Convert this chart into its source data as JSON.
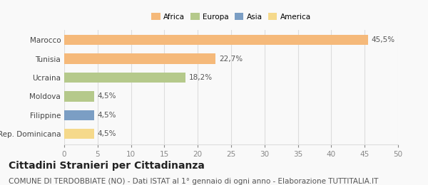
{
  "categories": [
    "Rep. Dominicana",
    "Filippine",
    "Moldova",
    "Ucraina",
    "Tunisia",
    "Marocco"
  ],
  "values": [
    4.5,
    4.5,
    4.5,
    18.2,
    22.7,
    45.5
  ],
  "labels": [
    "4,5%",
    "4,5%",
    "4,5%",
    "18,2%",
    "22,7%",
    "45,5%"
  ],
  "bar_colors": [
    "#f5d98b",
    "#7b9ec4",
    "#b5c98b",
    "#b5c98b",
    "#f5b97a",
    "#f5b97a"
  ],
  "legend_items": [
    {
      "label": "Africa",
      "color": "#f5b97a"
    },
    {
      "label": "Europa",
      "color": "#b5c98b"
    },
    {
      "label": "Asia",
      "color": "#7b9ec4"
    },
    {
      "label": "America",
      "color": "#f5d98b"
    }
  ],
  "xlim": [
    0,
    50
  ],
  "xticks": [
    0,
    5,
    10,
    15,
    20,
    25,
    30,
    35,
    40,
    45,
    50
  ],
  "title": "Cittadini Stranieri per Cittadinanza",
  "subtitle": "COMUNE DI TERDOBBIATE (NO) - Dati ISTAT al 1° gennaio di ogni anno - Elaborazione TUTTITALIA.IT",
  "background_color": "#f9f9f9",
  "grid_color": "#dddddd",
  "title_fontsize": 10,
  "subtitle_fontsize": 7.5,
  "label_fontsize": 7.5,
  "tick_fontsize": 7.5,
  "bar_height": 0.55
}
